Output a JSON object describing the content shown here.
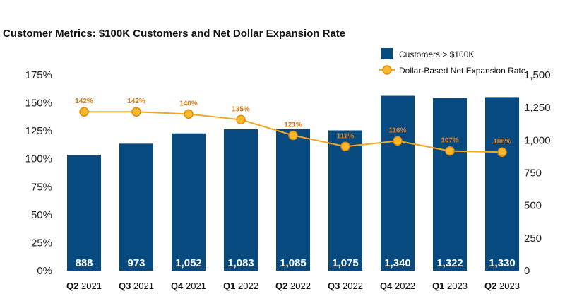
{
  "title": "Customer Metrics: $100K Customers and Net Dollar Expansion Rate",
  "colors": {
    "bar": "#074a7f",
    "line": "#f5a623",
    "marker_fill": "#fbb82a",
    "marker_stroke": "#e08a10",
    "rate_label": "#e07a10"
  },
  "chart_data": {
    "type": "bar",
    "categories": [
      {
        "quarter": "Q2",
        "year": "2021"
      },
      {
        "quarter": "Q3",
        "year": "2021"
      },
      {
        "quarter": "Q4",
        "year": "2021"
      },
      {
        "quarter": "Q1",
        "year": "2022"
      },
      {
        "quarter": "Q2",
        "year": "2022"
      },
      {
        "quarter": "Q3",
        "year": "2022"
      },
      {
        "quarter": "Q4",
        "year": "2022"
      },
      {
        "quarter": "Q1",
        "year": "2023"
      },
      {
        "quarter": "Q2",
        "year": "2023"
      }
    ],
    "series": [
      {
        "name": "Customers > $100K",
        "type": "bar",
        "axis": "right",
        "values": [
          888,
          973,
          1052,
          1083,
          1085,
          1075,
          1340,
          1322,
          1330
        ],
        "labels": [
          "888",
          "973",
          "1,052",
          "1,083",
          "1,085",
          "1,075",
          "1,340",
          "1,322",
          "1,330"
        ]
      },
      {
        "name": "Dollar-Based Net Expansion Rate",
        "type": "line",
        "axis": "left",
        "values": [
          142,
          142,
          140,
          135,
          121,
          111,
          116,
          107,
          106
        ],
        "labels": [
          "142%",
          "142%",
          "140%",
          "135%",
          "121%",
          "111%",
          "116%",
          "107%",
          "106%"
        ]
      }
    ],
    "y_left": {
      "range": [
        0,
        175
      ],
      "ticks": [
        0,
        25,
        50,
        75,
        100,
        125,
        150,
        175
      ],
      "tick_labels": [
        "0%",
        "25%",
        "50%",
        "75%",
        "100%",
        "125%",
        "150%",
        "175%"
      ]
    },
    "y_right": {
      "range": [
        0,
        1500
      ],
      "ticks": [
        0,
        250,
        500,
        750,
        1000,
        1250,
        1500
      ],
      "tick_labels": [
        "0",
        "250",
        "500",
        "750",
        "1,000",
        "1,250",
        "1,500"
      ]
    },
    "legend_position": "top-right",
    "grid": false
  }
}
